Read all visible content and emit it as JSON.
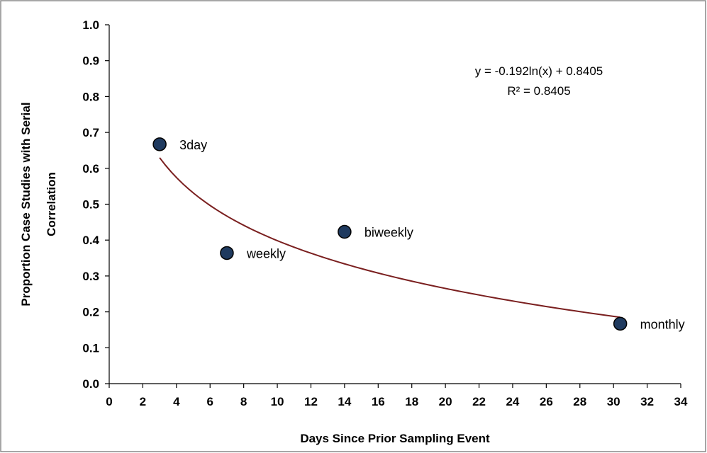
{
  "chart_data": {
    "type": "scatter",
    "xlabel": "Days Since Prior Sampling Event",
    "ylabel_lines": [
      "Proportion Case Studies with Serial",
      "Correlation"
    ],
    "xlim": [
      0,
      34
    ],
    "ylim": [
      0,
      1.0
    ],
    "xticks": [
      0,
      2,
      4,
      6,
      8,
      10,
      12,
      14,
      16,
      18,
      20,
      22,
      24,
      26,
      28,
      30,
      32,
      34
    ],
    "yticks": [
      0.0,
      0.1,
      0.2,
      0.3,
      0.4,
      0.5,
      0.6,
      0.7,
      0.8,
      0.9,
      1.0
    ],
    "ytick_labels": [
      "0.0",
      "0.1",
      "0.2",
      "0.3",
      "0.4",
      "0.5",
      "0.6",
      "0.7",
      "0.8",
      "0.9",
      "1.0"
    ],
    "points": [
      {
        "label": "3day",
        "x": 3,
        "y": 0.667
      },
      {
        "label": "weekly",
        "x": 7,
        "y": 0.364
      },
      {
        "label": "biweekly",
        "x": 14,
        "y": 0.423
      },
      {
        "label": "monthly",
        "x": 30.4,
        "y": 0.167
      }
    ],
    "trendline": {
      "type": "logarithmic",
      "a": -0.192,
      "b": 0.8405,
      "x_range": [
        3,
        30.4
      ],
      "color": "#7a1f1f",
      "equation_lines": [
        "y = -0.192ln(x) + 0.8405",
        "R² = 0.8405"
      ]
    },
    "marker_color": "#1f3a5f",
    "grid": false,
    "legend": "none"
  }
}
